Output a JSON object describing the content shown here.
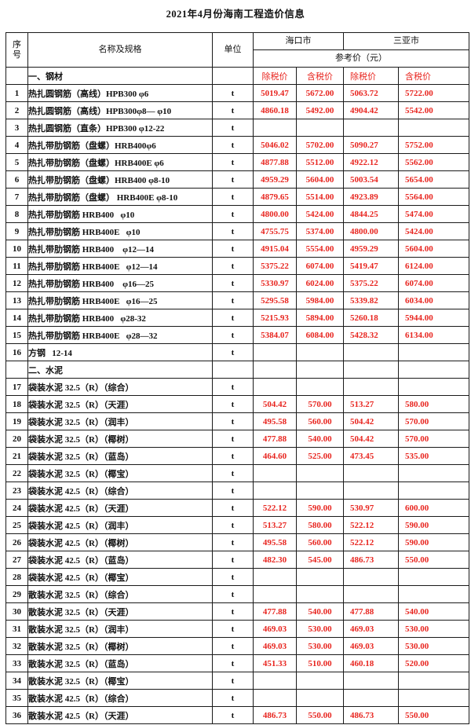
{
  "page": {
    "title": "2021年4月份海南工程造价信息"
  },
  "table": {
    "colors": {
      "price_red": "#e8251f",
      "border": "#1a1a1a"
    },
    "header": {
      "no": "序\n号",
      "name_spec": "名称及规格",
      "unit": "单位",
      "city_haikou": "海口市",
      "city_sanya": "三亚市",
      "ref_price": "参考价（元）",
      "ex_tax": "除税价",
      "inc_tax": "含税价"
    },
    "rows": [
      {
        "type": "section",
        "name": "一、钢材",
        "price_headers": [
          "除税价",
          "含税价",
          "除税价",
          "含税价"
        ]
      },
      {
        "type": "item",
        "no": "1",
        "name": "热扎圆钢筋（高线）HPB300 φ6",
        "unit": "t",
        "hk_ex": "5019.47",
        "hk_inc": "5672.00",
        "sy_ex": "5063.72",
        "sy_inc": "5722.00"
      },
      {
        "type": "item",
        "no": "2",
        "name": "热扎圆钢筋（高线）HPB300φ8— φ10",
        "unit": "t",
        "hk_ex": "4860.18",
        "hk_inc": "5492.00",
        "sy_ex": "4904.42",
        "sy_inc": "5542.00"
      },
      {
        "type": "item",
        "no": "3",
        "name": "热扎圆钢筋（直条）HPB300 φ12-22",
        "unit": "t",
        "hk_ex": "",
        "hk_inc": "",
        "sy_ex": "",
        "sy_inc": ""
      },
      {
        "type": "item",
        "no": "4",
        "name": "热扎带肋钢筋（盘螺）HRB400φ6",
        "unit": "t",
        "hk_ex": "5046.02",
        "hk_inc": "5702.00",
        "sy_ex": "5090.27",
        "sy_inc": "5752.00"
      },
      {
        "type": "item",
        "no": "5",
        "name": "热扎带肋钢筋（盘螺）HRB400E φ6",
        "unit": "t",
        "hk_ex": "4877.88",
        "hk_inc": "5512.00",
        "sy_ex": "4922.12",
        "sy_inc": "5562.00"
      },
      {
        "type": "item",
        "no": "6",
        "name": "热扎带肋钢筋（盘螺）HRB400 φ8-10",
        "unit": "t",
        "hk_ex": "4959.29",
        "hk_inc": "5604.00",
        "sy_ex": "5003.54",
        "sy_inc": "5654.00"
      },
      {
        "type": "item",
        "no": "7",
        "name": "热扎带肋钢筋（盘螺） HRB400E φ8-10",
        "unit": "t",
        "hk_ex": "4879.65",
        "hk_inc": "5514.00",
        "sy_ex": "4923.89",
        "sy_inc": "5564.00"
      },
      {
        "type": "item",
        "no": "8",
        "name": "热扎带肋钢筋 HRB400   φ10",
        "unit": "t",
        "hk_ex": "4800.00",
        "hk_inc": "5424.00",
        "sy_ex": "4844.25",
        "sy_inc": "5474.00"
      },
      {
        "type": "item",
        "no": "9",
        "name": "热扎带肋钢筋 HRB400E   φ10",
        "unit": "t",
        "hk_ex": "4755.75",
        "hk_inc": "5374.00",
        "sy_ex": "4800.00",
        "sy_inc": "5424.00"
      },
      {
        "type": "item",
        "no": "10",
        "name": "热扎带肋钢筋 HRB400    φ12—14",
        "unit": "t",
        "hk_ex": "4915.04",
        "hk_inc": "5554.00",
        "sy_ex": "4959.29",
        "sy_inc": "5604.00"
      },
      {
        "type": "item",
        "no": "11",
        "name": "热扎带肋钢筋 HRB400E   φ12—14",
        "unit": "t",
        "hk_ex": "5375.22",
        "hk_inc": "6074.00",
        "sy_ex": "5419.47",
        "sy_inc": "6124.00"
      },
      {
        "type": "item",
        "no": "12",
        "name": "热扎带肋钢筋 HRB400    φ16—25",
        "unit": "t",
        "hk_ex": "5330.97",
        "hk_inc": "6024.00",
        "sy_ex": "5375.22",
        "sy_inc": "6074.00"
      },
      {
        "type": "item",
        "no": "13",
        "name": "热扎带肋钢筋 HRB400E   φ16—25",
        "unit": "t",
        "hk_ex": "5295.58",
        "hk_inc": "5984.00",
        "sy_ex": "5339.82",
        "sy_inc": "6034.00"
      },
      {
        "type": "item",
        "no": "14",
        "name": "热扎带肋钢筋 HRB400   φ28-32",
        "unit": "t",
        "hk_ex": "5215.93",
        "hk_inc": "5894.00",
        "sy_ex": "5260.18",
        "sy_inc": "5944.00"
      },
      {
        "type": "item",
        "no": "15",
        "name": "热扎带肋钢筋 HRB400E   φ28—32",
        "unit": "t",
        "hk_ex": "5384.07",
        "hk_inc": "6084.00",
        "sy_ex": "5428.32",
        "sy_inc": "6134.00"
      },
      {
        "type": "item",
        "no": "16",
        "name": "方钢   12-14",
        "unit": "t",
        "hk_ex": "",
        "hk_inc": "",
        "sy_ex": "",
        "sy_inc": ""
      },
      {
        "type": "section",
        "name": "二、水泥"
      },
      {
        "type": "item",
        "no": "17",
        "name": "袋装水泥 32.5（R）（综合）",
        "unit": "t",
        "hk_ex": "",
        "hk_inc": "",
        "sy_ex": "",
        "sy_inc": ""
      },
      {
        "type": "item",
        "no": "18",
        "name": "袋装水泥 32.5（R）（天涯）",
        "unit": "t",
        "hk_ex": "504.42",
        "hk_inc": "570.00",
        "sy_ex": "513.27",
        "sy_inc": "580.00"
      },
      {
        "type": "item",
        "no": "19",
        "name": "袋装水泥 32.5（R）（润丰）",
        "unit": "t",
        "hk_ex": "495.58",
        "hk_inc": "560.00",
        "sy_ex": "504.42",
        "sy_inc": "570.00"
      },
      {
        "type": "item",
        "no": "20",
        "name": "袋装水泥 32.5（R）（椰树）",
        "unit": "t",
        "hk_ex": "477.88",
        "hk_inc": "540.00",
        "sy_ex": "504.42",
        "sy_inc": "570.00"
      },
      {
        "type": "item",
        "no": "21",
        "name": "袋装水泥 32.5（R）（蓝岛）",
        "unit": "t",
        "hk_ex": "464.60",
        "hk_inc": "525.00",
        "sy_ex": "473.45",
        "sy_inc": "535.00"
      },
      {
        "type": "item",
        "no": "22",
        "name": "袋装水泥 32.5（R）（椰宝）",
        "unit": "t",
        "hk_ex": "",
        "hk_inc": "",
        "sy_ex": "",
        "sy_inc": ""
      },
      {
        "type": "item",
        "no": "23",
        "name": "袋装水泥 42.5（R）（综合）",
        "unit": "t",
        "hk_ex": "",
        "hk_inc": "",
        "sy_ex": "",
        "sy_inc": ""
      },
      {
        "type": "item",
        "no": "24",
        "name": "袋装水泥 42.5（R）（天涯）",
        "unit": "t",
        "hk_ex": "522.12",
        "hk_inc": "590.00",
        "sy_ex": "530.97",
        "sy_inc": "600.00"
      },
      {
        "type": "item",
        "no": "25",
        "name": "袋装水泥 42.5（R）（润丰）",
        "unit": "t",
        "hk_ex": "513.27",
        "hk_inc": "580.00",
        "sy_ex": "522.12",
        "sy_inc": "590.00"
      },
      {
        "type": "item",
        "no": "26",
        "name": "袋装水泥 42.5（R）（椰树）",
        "unit": "t",
        "hk_ex": "495.58",
        "hk_inc": "560.00",
        "sy_ex": "522.12",
        "sy_inc": "590.00"
      },
      {
        "type": "item",
        "no": "27",
        "name": "袋装水泥 42.5（R）（蓝岛）",
        "unit": "t",
        "hk_ex": "482.30",
        "hk_inc": "545.00",
        "sy_ex": "486.73",
        "sy_inc": "550.00"
      },
      {
        "type": "item",
        "no": "28",
        "name": "袋装水泥 42.5（R）（椰宝）",
        "unit": "t",
        "hk_ex": "",
        "hk_inc": "",
        "sy_ex": "",
        "sy_inc": ""
      },
      {
        "type": "item",
        "no": "29",
        "name": "散装水泥 32.5（R）（综合）",
        "unit": "t",
        "hk_ex": "",
        "hk_inc": "",
        "sy_ex": "",
        "sy_inc": ""
      },
      {
        "type": "item",
        "no": "30",
        "name": "散装水泥 32.5（R）（天涯）",
        "unit": "t",
        "hk_ex": "477.88",
        "hk_inc": "540.00",
        "sy_ex": "477.88",
        "sy_inc": "540.00"
      },
      {
        "type": "item",
        "no": "31",
        "name": "散装水泥 32.5（R）（润丰）",
        "unit": "t",
        "hk_ex": "469.03",
        "hk_inc": "530.00",
        "sy_ex": "469.03",
        "sy_inc": "530.00"
      },
      {
        "type": "item",
        "no": "32",
        "name": "散装水泥 32.5（R）（椰树）",
        "unit": "t",
        "hk_ex": "469.03",
        "hk_inc": "530.00",
        "sy_ex": "469.03",
        "sy_inc": "530.00"
      },
      {
        "type": "item",
        "no": "33",
        "name": "散装水泥 32.5（R）（蓝岛）",
        "unit": "t",
        "hk_ex": "451.33",
        "hk_inc": "510.00",
        "sy_ex": "460.18",
        "sy_inc": "520.00"
      },
      {
        "type": "item",
        "no": "34",
        "name": "散装水泥 32.5（R）（椰宝）",
        "unit": "t",
        "hk_ex": "",
        "hk_inc": "",
        "sy_ex": "",
        "sy_inc": ""
      },
      {
        "type": "item",
        "no": "35",
        "name": "散装水泥 42.5（R）（综合）",
        "unit": "t",
        "hk_ex": "",
        "hk_inc": "",
        "sy_ex": "",
        "sy_inc": ""
      },
      {
        "type": "item",
        "no": "36",
        "name": "散装水泥 42.5（R）（天涯）",
        "unit": "t",
        "hk_ex": "486.73",
        "hk_inc": "550.00",
        "sy_ex": "486.73",
        "sy_inc": "550.00"
      }
    ]
  }
}
